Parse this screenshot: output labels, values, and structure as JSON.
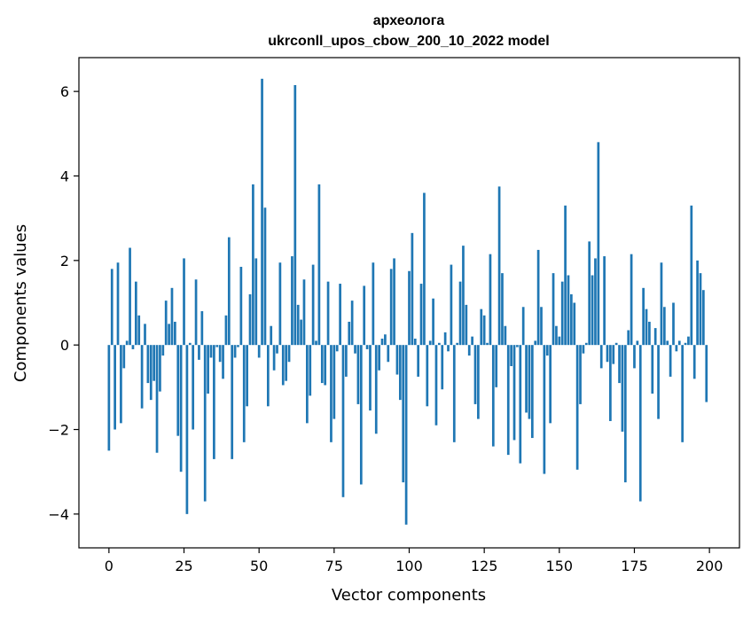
{
  "chart_data": {
    "type": "bar",
    "title": "археолога\nukrconll_upos_cbow_200_10_2022 model",
    "title_lines": [
      "археолога",
      "ukrconll_upos_cbow_200_10_2022 model"
    ],
    "xlabel": "Vector components",
    "ylabel": "Components values",
    "xlim": [
      -10,
      210
    ],
    "ylim": [
      -4.8,
      6.8
    ],
    "xticks": [
      0,
      25,
      50,
      75,
      100,
      125,
      150,
      175,
      200
    ],
    "yticks": [
      -4,
      -2,
      0,
      2,
      4,
      6
    ],
    "ytick_labels": [
      "−4",
      "−2",
      "0",
      "2",
      "4",
      "6"
    ],
    "grid": false,
    "bar_color": "#1f77b4",
    "x": [
      0,
      1,
      2,
      3,
      4,
      5,
      6,
      7,
      8,
      9,
      10,
      11,
      12,
      13,
      14,
      15,
      16,
      17,
      18,
      19,
      20,
      21,
      22,
      23,
      24,
      25,
      26,
      27,
      28,
      29,
      30,
      31,
      32,
      33,
      34,
      35,
      36,
      37,
      38,
      39,
      40,
      41,
      42,
      43,
      44,
      45,
      46,
      47,
      48,
      49,
      50,
      51,
      52,
      53,
      54,
      55,
      56,
      57,
      58,
      59,
      60,
      61,
      62,
      63,
      64,
      65,
      66,
      67,
      68,
      69,
      70,
      71,
      72,
      73,
      74,
      75,
      76,
      77,
      78,
      79,
      80,
      81,
      82,
      83,
      84,
      85,
      86,
      87,
      88,
      89,
      90,
      91,
      92,
      93,
      94,
      95,
      96,
      97,
      98,
      99,
      100,
      101,
      102,
      103,
      104,
      105,
      106,
      107,
      108,
      109,
      110,
      111,
      112,
      113,
      114,
      115,
      116,
      117,
      118,
      119,
      120,
      121,
      122,
      123,
      124,
      125,
      126,
      127,
      128,
      129,
      130,
      131,
      132,
      133,
      134,
      135,
      136,
      137,
      138,
      139,
      140,
      141,
      142,
      143,
      144,
      145,
      146,
      147,
      148,
      149,
      150,
      151,
      152,
      153,
      154,
      155,
      156,
      157,
      158,
      159,
      160,
      161,
      162,
      163,
      164,
      165,
      166,
      167,
      168,
      169,
      170,
      171,
      172,
      173,
      174,
      175,
      176,
      177,
      178,
      179,
      180,
      181,
      182,
      183,
      184,
      185,
      186,
      187,
      188,
      189,
      190,
      191,
      192,
      193,
      194,
      195,
      196,
      197,
      198,
      199
    ],
    "values": [
      -2.5,
      1.8,
      -2.0,
      1.95,
      -1.85,
      -0.55,
      0.1,
      2.3,
      -0.1,
      1.5,
      0.7,
      -1.5,
      0.5,
      -0.9,
      -1.3,
      -0.85,
      -2.55,
      -1.1,
      -0.25,
      1.05,
      0.5,
      1.35,
      0.55,
      -2.15,
      -3.0,
      2.05,
      -4.0,
      0.05,
      -2.0,
      1.55,
      -0.35,
      0.8,
      -3.7,
      -1.15,
      -0.3,
      -2.7,
      -0.05,
      -0.4,
      -0.8,
      0.7,
      2.55,
      -2.7,
      -0.3,
      -0.05,
      1.85,
      -2.3,
      -1.45,
      1.2,
      3.8,
      2.05,
      -0.3,
      6.3,
      3.25,
      -1.45,
      0.45,
      -0.6,
      -0.2,
      1.95,
      -0.95,
      -0.85,
      -0.4,
      2.1,
      6.15,
      0.95,
      0.6,
      1.55,
      -1.85,
      -1.2,
      1.9,
      0.1,
      3.8,
      -0.9,
      -0.95,
      1.5,
      -2.3,
      -1.75,
      -0.15,
      1.45,
      -3.6,
      -0.75,
      0.55,
      1.05,
      -0.2,
      -1.4,
      -3.3,
      1.4,
      -0.1,
      -1.55,
      1.95,
      -2.1,
      -0.6,
      0.15,
      0.25,
      -0.4,
      1.8,
      2.05,
      -0.7,
      -1.3,
      -3.25,
      -4.25,
      1.75,
      2.65,
      0.15,
      -0.75,
      1.45,
      3.6,
      -1.45,
      0.1,
      1.1,
      -1.9,
      0.05,
      -1.05,
      0.3,
      -0.15,
      1.9,
      -2.3,
      0.05,
      1.5,
      2.35,
      0.95,
      -0.25,
      0.2,
      -1.4,
      -1.75,
      0.85,
      0.7,
      0.05,
      2.15,
      -2.4,
      -1.0,
      3.75,
      1.7,
      0.45,
      -2.6,
      -0.5,
      -2.25,
      -0.05,
      -2.8,
      0.9,
      -1.6,
      -1.75,
      -2.2,
      0.1,
      2.25,
      0.9,
      -3.05,
      -0.25,
      -1.85,
      1.7,
      0.45,
      0.2,
      1.5,
      3.3,
      1.65,
      1.2,
      1.0,
      -2.95,
      -1.4,
      -0.2,
      0.05,
      2.45,
      1.65,
      2.05,
      4.8,
      -0.55,
      2.1,
      -0.4,
      -1.8,
      -0.45,
      0.05,
      -0.9,
      -2.05,
      -3.25,
      0.35,
      2.15,
      -0.55,
      0.1,
      -3.7,
      1.35,
      0.85,
      0.55,
      -1.15,
      0.4,
      -1.75,
      1.95,
      0.9,
      0.1,
      -0.75,
      1.0,
      -0.15,
      0.1,
      -2.3,
      0.05,
      0.2,
      3.3,
      -0.8,
      2.0,
      1.7,
      1.3,
      -1.35
    ]
  }
}
